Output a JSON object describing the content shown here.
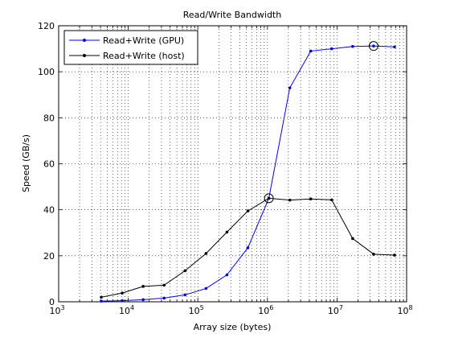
{
  "chart_data": {
    "type": "line",
    "title": "Read/Write Bandwidth",
    "xlabel": "Array size (bytes)",
    "ylabel": "Speed (GB/s)",
    "x_scale": "log",
    "xlim": [
      1000,
      100000000
    ],
    "ylim": [
      0,
      120
    ],
    "x_ticks": [
      {
        "value": 1000,
        "base": "10",
        "exp": "3"
      },
      {
        "value": 10000,
        "base": "10",
        "exp": "4"
      },
      {
        "value": 100000,
        "base": "10",
        "exp": "5"
      },
      {
        "value": 1000000,
        "base": "10",
        "exp": "6"
      },
      {
        "value": 10000000,
        "base": "10",
        "exp": "7"
      },
      {
        "value": 100000000,
        "base": "10",
        "exp": "8"
      }
    ],
    "y_ticks": [
      0,
      20,
      40,
      60,
      80,
      100,
      120
    ],
    "y_tick_labels": [
      "0",
      "20",
      "40",
      "60",
      "80",
      "100",
      "120"
    ],
    "grid": true,
    "grid_style": "dotted",
    "legend_position": "top-left",
    "series": [
      {
        "name": "Read+Write (GPU)",
        "color": "#0000ff",
        "x": [
          4096,
          8192,
          16384,
          32768,
          65536,
          131072,
          262144,
          524288,
          1048576,
          2097152,
          4194304,
          8388608,
          16777216,
          33554432,
          67108864
        ],
        "y": [
          0.3,
          0.5,
          0.9,
          1.6,
          3.0,
          5.8,
          11.7,
          23.5,
          45.0,
          93.0,
          109.0,
          110.0,
          111.0,
          111.2,
          110.8
        ]
      },
      {
        "name": "Read+Write (host)",
        "color": "#000000",
        "x": [
          4096,
          8192,
          16384,
          32768,
          65536,
          131072,
          262144,
          524288,
          1048576,
          2097152,
          4194304,
          8388608,
          16777216,
          33554432,
          67108864
        ],
        "y": [
          2.0,
          3.8,
          6.7,
          7.2,
          13.5,
          21.0,
          30.3,
          39.5,
          45.0,
          44.2,
          44.7,
          44.3,
          27.5,
          20.7,
          20.3
        ]
      }
    ],
    "highlight_points": [
      {
        "series": 0,
        "index": 8
      },
      {
        "series": 0,
        "index": 13
      }
    ],
    "colors": {
      "axis": "#000000",
      "grid": "#000000",
      "background": "#ffffff"
    }
  }
}
